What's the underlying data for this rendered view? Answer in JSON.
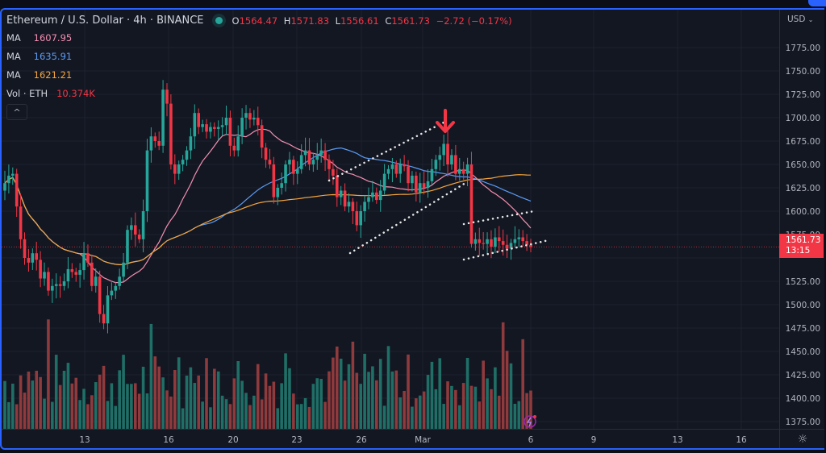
{
  "header": {
    "symbol_title": "Ethereum / U.S. Dollar · 4h · BINANCE",
    "status_color": "#26a69a",
    "ohlc": {
      "o_label": "O",
      "o": "1564.47",
      "h_label": "H",
      "h": "1571.83",
      "l_label": "L",
      "l": "1556.61",
      "c_label": "C",
      "c": "1561.73",
      "change": "−2.72 (−0.17%)"
    }
  },
  "indicators": [
    {
      "label": "MA",
      "value": "1607.95",
      "color": "#f48fb1"
    },
    {
      "label": "MA",
      "value": "1635.91",
      "color": "#5b9cf6"
    },
    {
      "label": "MA",
      "value": "1621.21",
      "color": "#f7a63c"
    },
    {
      "label": "Vol · ETH",
      "value": "10.374K",
      "color": "#f23645"
    }
  ],
  "collapse_icon": "^",
  "price_scale": {
    "currency": "USD",
    "ticks": [
      "1775.00",
      "1750.00",
      "1725.00",
      "1700.00",
      "1675.00",
      "1650.00",
      "1625.00",
      "1600.00",
      "1575.00",
      "1525.00",
      "1500.00",
      "1475.00",
      "1450.00",
      "1425.00",
      "1400.00",
      "1375.00"
    ],
    "last_price": "1561.73",
    "countdown": "13:15"
  },
  "time_axis": {
    "labels": [
      "13",
      "16",
      "20",
      "23",
      "26",
      "Mar",
      "6",
      "9",
      "13",
      "16"
    ]
  },
  "settings_icon": "☼",
  "colors": {
    "up": "#26a69a",
    "down": "#f23645",
    "vol_up": "#1f6f67",
    "vol_down": "#8f3a3c",
    "bg": "#131722",
    "grid": "#1e222d"
  },
  "chart_data": {
    "type": "candlestick",
    "title": "Ethereum / U.S. Dollar · 4h · BINANCE",
    "ylabel": "USD",
    "ylim": [
      1355,
      1795
    ],
    "x_tick_labels": [
      "13",
      "16",
      "20",
      "23",
      "26",
      "Mar",
      "6",
      "9",
      "13",
      "16"
    ],
    "ohlc_last": {
      "open": 1564.47,
      "high": 1571.83,
      "low": 1556.61,
      "close": 1561.73
    },
    "moving_averages": [
      {
        "name": "MA (pink)",
        "last": 1607.95
      },
      {
        "name": "MA (blue)",
        "last": 1635.91
      },
      {
        "name": "MA (orange)",
        "last": 1621.21
      }
    ],
    "volume_last": "10.374K",
    "closes_approx": [
      1630,
      1638,
      1640,
      1605,
      1570,
      1550,
      1545,
      1555,
      1548,
      1528,
      1535,
      1515,
      1520,
      1522,
      1520,
      1525,
      1538,
      1535,
      1532,
      1537,
      1555,
      1545,
      1520,
      1530,
      1490,
      1480,
      1510,
      1515,
      1520,
      1530,
      1545,
      1580,
      1585,
      1575,
      1570,
      1600,
      1665,
      1680,
      1675,
      1670,
      1730,
      1715,
      1650,
      1640,
      1650,
      1655,
      1665,
      1680,
      1705,
      1690,
      1693,
      1685,
      1690,
      1688,
      1690,
      1692,
      1700,
      1670,
      1665,
      1680,
      1700,
      1705,
      1698,
      1700,
      1692,
      1668,
      1655,
      1650,
      1615,
      1625,
      1630,
      1650,
      1655,
      1640,
      1645,
      1660,
      1665,
      1650,
      1655,
      1660,
      1665,
      1655,
      1645,
      1638,
      1615,
      1622,
      1605,
      1610,
      1600,
      1585,
      1600,
      1610,
      1615,
      1620,
      1612,
      1622,
      1640,
      1645,
      1650,
      1640,
      1650,
      1648,
      1630,
      1638,
      1620,
      1630,
      1625,
      1632,
      1645,
      1655,
      1660,
      1672,
      1650,
      1660,
      1640,
      1645,
      1640,
      1650,
      1565,
      1570,
      1566,
      1565,
      1570,
      1562,
      1572,
      1568,
      1564,
      1560,
      1566,
      1570,
      1572,
      1568,
      1564,
      1561.73
    ],
    "annotations": [
      "rising channel (dotted)",
      "red down arrow at ~1690",
      "flag channel (dotted)"
    ]
  }
}
